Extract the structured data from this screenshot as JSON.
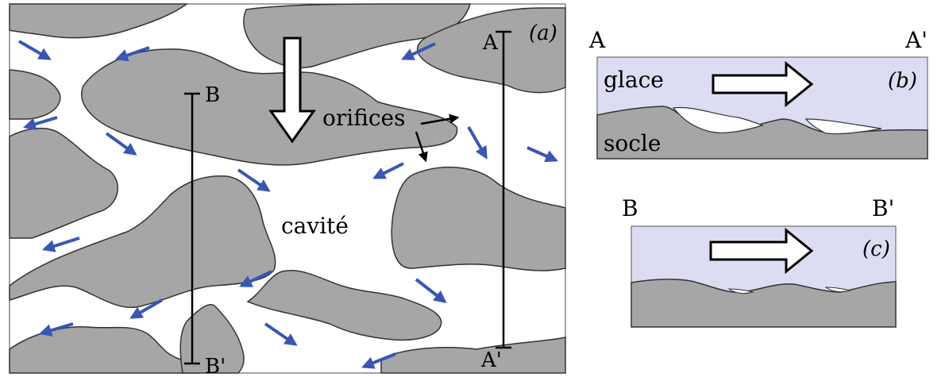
{
  "panel_a": {
    "tag": "(a)",
    "cavity_label": "cavité",
    "orifices_label": "orifices",
    "line_a_start": "A",
    "line_a_end": "A'",
    "line_b_start": "B",
    "line_b_end": "B'"
  },
  "panel_b": {
    "tag": "(b)",
    "left_label": "A",
    "right_label": "A'",
    "ice_label": "glace",
    "bed_label": "socle"
  },
  "panel_c": {
    "tag": "(c)",
    "left_label": "B",
    "right_label": "B'"
  },
  "colors": {
    "bedrock": "#a6a6a6",
    "ice": "#dcdcf2",
    "flow_arrow": "#3a56b3",
    "outline": "#333333"
  }
}
